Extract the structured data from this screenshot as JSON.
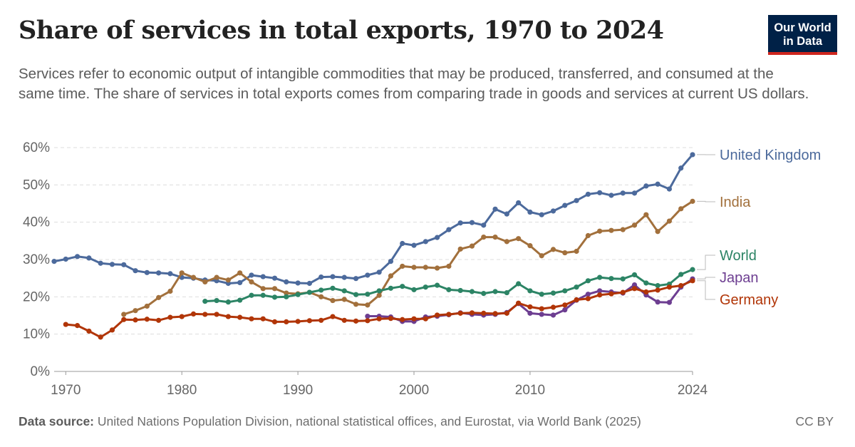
{
  "header": {
    "title": "Share of services in total exports, 1970 to 2024",
    "subtitle": "Services refer to economic output of intangible commodities that may be produced, transferred, and consumed at the same time. The share of services in total exports comes from comparing trade in goods and services at current US dollars."
  },
  "logo": {
    "line1": "Our World",
    "line2": "in Data",
    "bg_color": "#002147",
    "accent_color": "#ce261e"
  },
  "footer": {
    "source_label": "Data source:",
    "source_text": "United Nations Population Division, national statistical offices, and Eurostat, via World Bank (2025)",
    "license": "CC BY"
  },
  "chart_data": {
    "type": "line",
    "title": "Share of services in total exports, 1970 to 2024",
    "xlim": [
      1969,
      2024
    ],
    "ylim": [
      0,
      60
    ],
    "x_ticks": [
      1970,
      1980,
      1990,
      2000,
      2010,
      2024
    ],
    "y_ticks": [
      0,
      10,
      20,
      30,
      40,
      50,
      60
    ],
    "y_tick_labels": [
      "0%",
      "10%",
      "20%",
      "30%",
      "40%",
      "50%",
      "60%"
    ],
    "grid": "horizontal dashed",
    "legend": "labels at right end of lines",
    "series": [
      {
        "name": "United Kingdom",
        "color": "#4c6a9c",
        "x": [
          1969,
          1970,
          1971,
          1972,
          1973,
          1974,
          1975,
          1976,
          1977,
          1978,
          1979,
          1980,
          1981,
          1982,
          1983,
          1984,
          1985,
          1986,
          1987,
          1988,
          1989,
          1990,
          1991,
          1992,
          1993,
          1994,
          1995,
          1996,
          1997,
          1998,
          1999,
          2000,
          2001,
          2002,
          2003,
          2004,
          2005,
          2006,
          2007,
          2008,
          2009,
          2010,
          2011,
          2012,
          2013,
          2014,
          2015,
          2016,
          2017,
          2018,
          2019,
          2020,
          2021,
          2022,
          2023,
          2024
        ],
        "y": [
          29.5,
          30.1,
          30.8,
          30.4,
          29.0,
          28.7,
          28.6,
          27.0,
          26.5,
          26.4,
          26.2,
          25.2,
          25.0,
          24.5,
          24.3,
          23.6,
          23.8,
          25.8,
          25.4,
          25.0,
          24.0,
          23.7,
          23.6,
          25.3,
          25.4,
          25.2,
          24.9,
          25.8,
          26.6,
          29.5,
          34.3,
          33.8,
          34.8,
          35.9,
          38.0,
          39.8,
          39.9,
          39.2,
          43.5,
          42.2,
          45.2,
          42.7,
          42.0,
          43.0,
          44.5,
          45.8,
          47.5,
          47.9,
          47.2,
          47.8,
          47.8,
          49.7,
          50.2,
          48.9,
          54.5,
          58.1
        ]
      },
      {
        "name": "India",
        "color": "#a2703c",
        "x": [
          1975,
          1976,
          1977,
          1978,
          1979,
          1980,
          1981,
          1982,
          1983,
          1984,
          1985,
          1986,
          1987,
          1988,
          1989,
          1990,
          1991,
          1992,
          1993,
          1994,
          1995,
          1996,
          1997,
          1998,
          1999,
          2000,
          2001,
          2002,
          2003,
          2004,
          2005,
          2006,
          2007,
          2008,
          2009,
          2010,
          2011,
          2012,
          2013,
          2014,
          2015,
          2016,
          2017,
          2018,
          2019,
          2020,
          2021,
          2022,
          2023,
          2024
        ],
        "y": [
          15.3,
          16.3,
          17.5,
          19.8,
          21.5,
          26.4,
          25.2,
          24.0,
          25.2,
          24.5,
          26.4,
          24.0,
          22.2,
          22.2,
          21.0,
          20.8,
          21.2,
          20.0,
          19.0,
          19.3,
          18.0,
          17.8,
          20.4,
          25.6,
          28.2,
          27.9,
          27.9,
          27.7,
          28.2,
          32.8,
          33.6,
          36.0,
          36.0,
          34.8,
          35.6,
          33.7,
          31.0,
          32.7,
          31.8,
          32.2,
          36.4,
          37.6,
          37.8,
          38.0,
          39.2,
          42.0,
          37.5,
          40.3,
          43.6,
          45.6
        ]
      },
      {
        "name": "World",
        "color": "#2c8465",
        "x": [
          1982,
          1983,
          1984,
          1985,
          1986,
          1987,
          1988,
          1989,
          1990,
          1991,
          1992,
          1993,
          1994,
          1995,
          1996,
          1997,
          1998,
          1999,
          2000,
          2001,
          2002,
          2003,
          2004,
          2005,
          2006,
          2007,
          2008,
          2009,
          2010,
          2011,
          2012,
          2013,
          2014,
          2015,
          2016,
          2017,
          2018,
          2019,
          2020,
          2021,
          2022,
          2023,
          2024
        ],
        "y": [
          18.8,
          19.0,
          18.6,
          19.1,
          20.4,
          20.4,
          19.9,
          20.0,
          20.6,
          21.2,
          21.8,
          22.3,
          21.6,
          20.6,
          20.7,
          21.6,
          22.3,
          22.8,
          21.9,
          22.6,
          23.1,
          21.9,
          21.7,
          21.4,
          20.9,
          21.4,
          21.1,
          23.5,
          21.6,
          20.7,
          21.0,
          21.6,
          22.6,
          24.3,
          25.2,
          24.9,
          24.8,
          25.9,
          23.7,
          23.0,
          23.4,
          26.0,
          27.3
        ]
      },
      {
        "name": "Japan",
        "color": "#6d3e91",
        "x": [
          1996,
          1997,
          1998,
          1999,
          2000,
          2001,
          2002,
          2003,
          2004,
          2005,
          2006,
          2007,
          2008,
          2009,
          2010,
          2011,
          2012,
          2013,
          2014,
          2015,
          2016,
          2017,
          2018,
          2019,
          2020,
          2021,
          2022,
          2023,
          2024
        ],
        "y": [
          14.8,
          14.8,
          14.6,
          13.4,
          13.4,
          14.6,
          14.8,
          15.2,
          15.7,
          15.3,
          15.1,
          15.3,
          15.8,
          18.2,
          15.6,
          15.3,
          15.1,
          16.5,
          19.1,
          20.7,
          21.6,
          21.3,
          21.0,
          23.2,
          20.5,
          18.6,
          18.5,
          22.6,
          24.8
        ]
      },
      {
        "name": "Germany",
        "color": "#b13507",
        "x": [
          1970,
          1971,
          1972,
          1973,
          1974,
          1975,
          1976,
          1977,
          1978,
          1979,
          1980,
          1981,
          1982,
          1983,
          1984,
          1985,
          1986,
          1987,
          1988,
          1989,
          1990,
          1991,
          1992,
          1993,
          1994,
          1995,
          1996,
          1997,
          1998,
          1999,
          2000,
          2001,
          2002,
          2003,
          2004,
          2005,
          2006,
          2007,
          2008,
          2009,
          2010,
          2011,
          2012,
          2013,
          2014,
          2015,
          2016,
          2017,
          2018,
          2019,
          2020,
          2021,
          2022,
          2023,
          2024
        ],
        "y": [
          12.6,
          12.3,
          10.8,
          9.2,
          11.1,
          13.9,
          13.8,
          14.0,
          13.7,
          14.5,
          14.7,
          15.4,
          15.3,
          15.3,
          14.7,
          14.5,
          14.1,
          14.1,
          13.3,
          13.3,
          13.4,
          13.6,
          13.7,
          14.7,
          13.7,
          13.5,
          13.6,
          14.1,
          14.2,
          13.9,
          14.1,
          14.1,
          15.1,
          15.3,
          15.6,
          15.7,
          15.6,
          15.5,
          15.6,
          18.3,
          17.3,
          16.8,
          17.2,
          17.8,
          19.2,
          19.5,
          20.5,
          20.8,
          21.2,
          22.2,
          21.3,
          21.8,
          22.6,
          23.0,
          24.3
        ]
      }
    ]
  }
}
